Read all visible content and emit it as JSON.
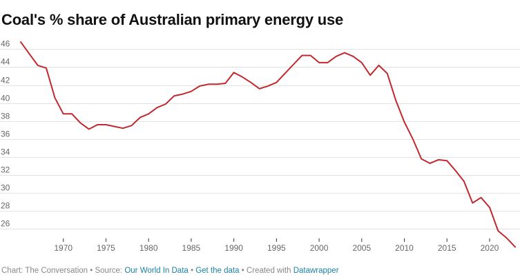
{
  "chart_data": {
    "type": "line",
    "title": "Coal's % share of Australian primary energy use",
    "xlabel": "",
    "ylabel": "",
    "xlim": [
      1965,
      2023
    ],
    "ylim": [
      25,
      47
    ],
    "y_ticks": [
      "26",
      "28",
      "30",
      "32",
      "34",
      "36",
      "38",
      "40",
      "42",
      "44",
      "46"
    ],
    "x_ticks": [
      "1970",
      "1975",
      "1980",
      "1985",
      "1990",
      "1995",
      "2000",
      "2005",
      "2010",
      "2015",
      "2020"
    ],
    "grid": true,
    "line_color": "#c1272d",
    "series": [
      {
        "x": [
          1965,
          1966,
          1967,
          1968,
          1969,
          1970,
          1971,
          1972,
          1973,
          1974,
          1975,
          1976,
          1977,
          1978,
          1979,
          1980,
          1981,
          1982,
          1983,
          1984,
          1985,
          1986,
          1987,
          1988,
          1989,
          1990,
          1991,
          1992,
          1993,
          1994,
          1995,
          1996,
          1997,
          1998,
          1999,
          2000,
          2001,
          2002,
          2003,
          2004,
          2005,
          2006,
          2007,
          2008,
          2009,
          2010,
          2011,
          2012,
          2013,
          2014,
          2015,
          2016,
          2017,
          2018,
          2019,
          2020,
          2021,
          2022,
          2023
        ],
        "values": [
          46.8,
          45.5,
          44.2,
          43.9,
          40.6,
          38.8,
          38.8,
          37.8,
          37.1,
          37.6,
          37.6,
          37.4,
          37.2,
          37.5,
          38.4,
          38.8,
          39.5,
          39.9,
          40.8,
          41.0,
          41.3,
          41.9,
          42.1,
          42.1,
          42.2,
          43.4,
          42.9,
          42.3,
          41.6,
          41.9,
          42.3,
          43.3,
          44.3,
          45.3,
          45.3,
          44.5,
          44.5,
          45.2,
          45.6,
          45.2,
          44.5,
          43.1,
          44.2,
          43.3,
          40.3,
          37.9,
          36.0,
          33.8,
          33.3,
          33.7,
          33.6,
          32.5,
          31.3,
          28.9,
          29.5,
          28.4,
          25.8,
          25.0,
          24.0
        ]
      }
    ]
  },
  "footer": {
    "prefix": "Chart: The Conversation • Source: ",
    "source_link": "Our World In Data",
    "sep1": " • ",
    "data_link": "Get the data",
    "sep2": " • Created with ",
    "tool_link": "Datawrapper"
  }
}
